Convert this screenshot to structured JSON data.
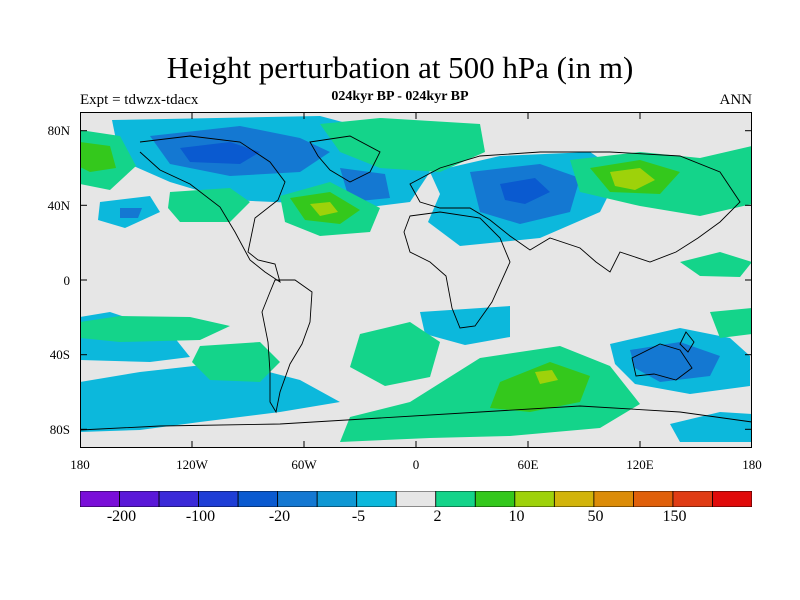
{
  "title": "Height perturbation at 500 hPa (in m)",
  "subtitle": "024kyr BP - 024kyr BP",
  "expt_label": "Expt = tdwzx-tdacx",
  "period": "ANN",
  "map": {
    "projection": "cylindrical equidistant",
    "lon_range": [
      -180,
      180
    ],
    "lat_range": [
      -90,
      90
    ],
    "background_color": "#e6e6e6",
    "coastline_color": "#000000"
  },
  "lat_ticks": [
    "80N",
    "40N",
    "0",
    "40S",
    "80S"
  ],
  "lon_ticks": [
    "180",
    "120W",
    "60W",
    "0",
    "60E",
    "120E",
    "180"
  ],
  "colorbar": {
    "colors": [
      "#7a0ed8",
      "#5a18d8",
      "#3b2ad8",
      "#1f3ed6",
      "#0a5ad0",
      "#1478d2",
      "#0f98d4",
      "#0cb8dc",
      "#e6e6e6",
      "#14d48a",
      "#34c81c",
      "#9ed20a",
      "#d2b40a",
      "#dc8c08",
      "#e0600a",
      "#e03c14",
      "#e00a0a"
    ],
    "labels": [
      "-200",
      "-100",
      "-20",
      "-5",
      "2",
      "10",
      "50",
      "150"
    ]
  }
}
